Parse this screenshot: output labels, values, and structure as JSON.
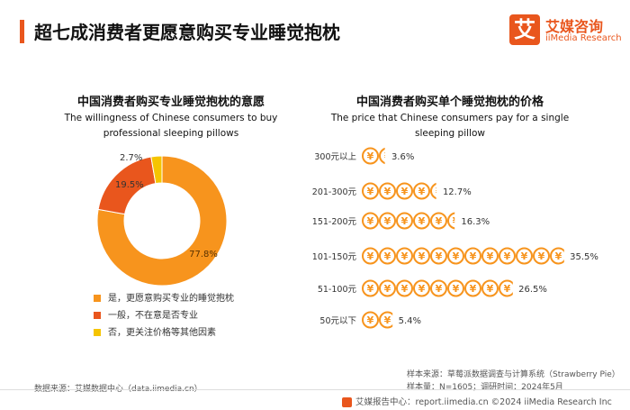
{
  "header": {
    "title": "超七成消费者更愿意购买专业睡觉抱枕"
  },
  "logo": {
    "glyph": "艾",
    "name_cn": "艾媒咨询",
    "name_en": "iiMedia Research"
  },
  "colors": {
    "accent": "#e9561d",
    "orange": "#f7941d",
    "red": "#e9561d",
    "yellow": "#f5c400"
  },
  "chart_data": [
    {
      "type": "pie",
      "style": "donut",
      "title": "中国消费者购买专业睡觉抱枕的意愿",
      "subtitle": "The willingness of Chinese consumers to buy professional sleeping pillows",
      "series": [
        {
          "name": "是，更愿意购买专业的睡觉抱枕",
          "value": 77.8,
          "label": "77.8%",
          "color": "#f7941d"
        },
        {
          "name": "一般，不在意是否专业",
          "value": 19.5,
          "label": "19.5%",
          "color": "#e9561d"
        },
        {
          "name": "否，更关注价格等其他因素",
          "value": 2.7,
          "label": "2.7%",
          "color": "#f5c400"
        }
      ],
      "legend": "bottom"
    },
    {
      "type": "bar",
      "style": "pictogram",
      "title": "中国消费者购买单个睡觉抱枕的价格",
      "subtitle": "The price that Chinese consumers pay for a single sleeping pillow",
      "icon": "yuan-coin-icon",
      "icon_glyph": "¥",
      "categories": [
        "300元以上",
        "201-300元",
        "151-200元",
        "101-150元",
        "51-100元",
        "50元以下"
      ],
      "values": [
        3.6,
        12.7,
        16.3,
        35.5,
        26.5,
        5.4
      ],
      "labels": [
        "3.6%",
        "12.7%",
        "16.3%",
        "35.5%",
        "26.5%",
        "5.4%"
      ],
      "unit_value": 3,
      "color": "#f7941d"
    }
  ],
  "footer": {
    "source_left": "数据来源：艾媒数据中心（data.iimedia.cn）",
    "sample_source": "样本来源：草莓派数据调查与计算系统（Strawberry Pie）",
    "sample_size": "样本量：N=1605；调研时间：2024年5月",
    "bar": "艾媒报告中心：report.iimedia.cn   ©2024   iiMedia Research Inc"
  }
}
